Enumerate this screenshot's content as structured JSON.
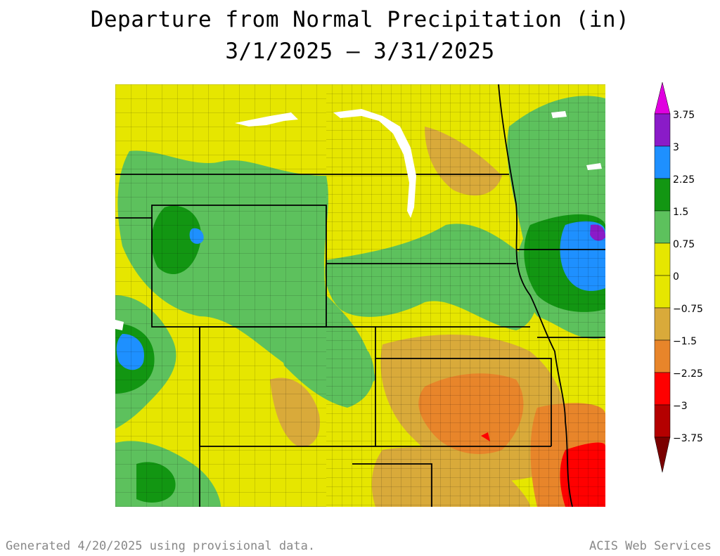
{
  "title": {
    "line1": "Departure from Normal Precipitation (in)",
    "line2": "3/1/2025 – 3/31/2025"
  },
  "legend": {
    "levels": [
      {
        "label": "3.75",
        "color": "#e000e0"
      },
      {
        "label": "3",
        "color": "#8a1bc8"
      },
      {
        "label": "2.25",
        "color": "#1e90ff"
      },
      {
        "label": "1.5",
        "color": "#129612"
      },
      {
        "label": "0.75",
        "color": "#5dc15d"
      },
      {
        "label": "0",
        "color": "#e6e600"
      },
      {
        "label": "−0.75",
        "color": "#d9aa3a"
      },
      {
        "label": "−1.5",
        "color": "#e8852a"
      },
      {
        "label": "−2.25",
        "color": "#ff0000"
      },
      {
        "label": "−3",
        "color": "#b40000"
      },
      {
        "label": "−3.75",
        "color": "#7a0000"
      }
    ]
  },
  "colors": {
    "neutral": "#e6e600",
    "wet_light": "#5dc15d",
    "wet": "#129612",
    "very_wet": "#1e90ff",
    "extreme_wet": "#8a1bc8",
    "dry_light": "#d9aa3a",
    "dry": "#e8852a",
    "very_dry": "#ff0000"
  },
  "footer": {
    "left": "Generated 4/20/2025 using provisional data.",
    "right": "ACIS Web Services"
  }
}
